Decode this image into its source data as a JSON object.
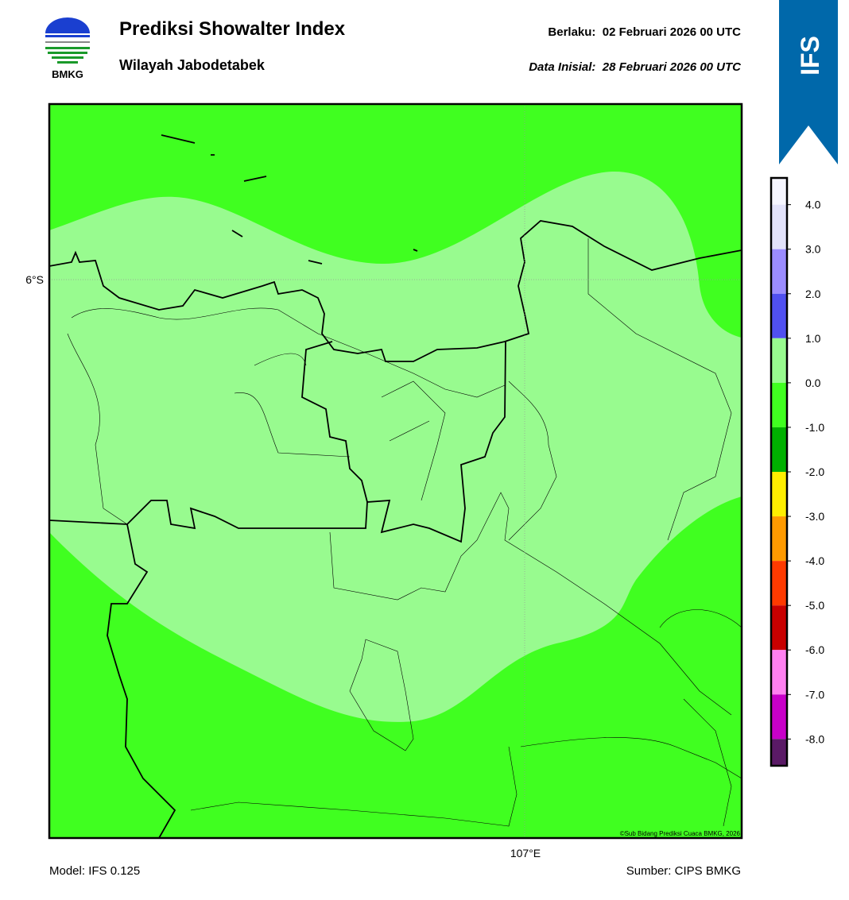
{
  "header": {
    "title": "Prediksi Showalter Index",
    "subtitle": "Wilayah Jabodetabek",
    "valid": "Berlaku:  02 Februari 2026 00 UTC",
    "init": "Data Inisial:  28 Februari 2026 00 UTC",
    "logo_text": "BMKG",
    "badge": "IFS"
  },
  "map": {
    "lat_label": "6°S",
    "lon_label": "107°E",
    "credit": "©Sub Bidang Prediksi Cuaca BMKG, 2026"
  },
  "colorbar": {
    "range": [
      -8.6,
      4.6
    ],
    "ticks": [
      {
        "value": 4,
        "label": "4.0"
      },
      {
        "value": 3,
        "label": "3.0"
      },
      {
        "value": 2,
        "label": "2.0"
      },
      {
        "value": 1,
        "label": "1.0"
      },
      {
        "value": 0,
        "label": "0.0"
      },
      {
        "value": -1,
        "label": "-1.0"
      },
      {
        "value": -2,
        "label": "-2.0"
      },
      {
        "value": -3,
        "label": "-3.0"
      },
      {
        "value": -4,
        "label": "-4.0"
      },
      {
        "value": -5,
        "label": "-5.0"
      },
      {
        "value": -6,
        "label": "-6.0"
      },
      {
        "value": -7,
        "label": "-7.0"
      },
      {
        "value": -8,
        "label": "-8.0"
      }
    ],
    "colors": [
      "#f6f6ff",
      "#e2e2fa",
      "#9b8cff",
      "#5050f0",
      "#98fb8f",
      "#40ff20",
      "#00b000",
      "#ffee00",
      "#ff9a00",
      "#ff3a00",
      "#c80000",
      "#ff80f0",
      "#c800c8",
      "#5a1a66"
    ]
  },
  "footer": {
    "model": "Model: IFS 0.125",
    "source": "Sumber: CIPS BMKG"
  }
}
